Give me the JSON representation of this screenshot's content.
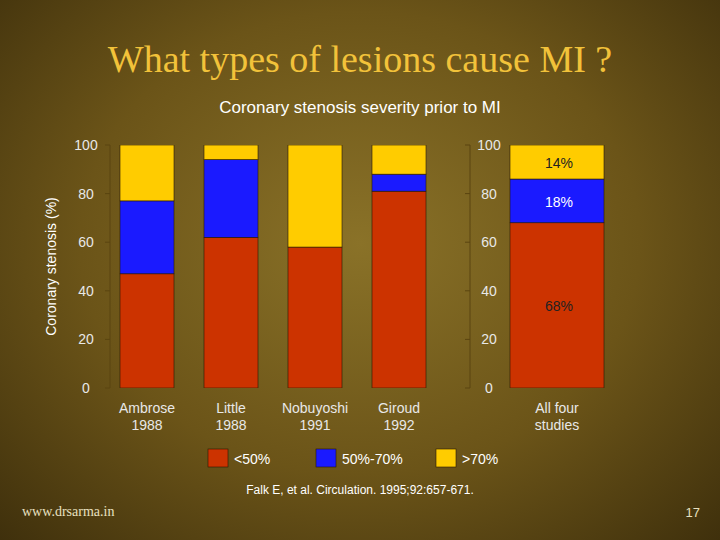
{
  "chart_data": {
    "type": "bar",
    "stacked": true,
    "title": "What types of lesions cause MI ?",
    "subtitle": "Coronary stenosis severity prior to MI",
    "y_label": "Coronary stenosis (%)",
    "categories": [
      "Ambrose 1988",
      "Little 1988",
      "Nobuyoshi 1991",
      "Giroud 1992",
      "All four studies"
    ],
    "series": [
      {
        "name": "<50%",
        "color": "#cc3300",
        "values": [
          47,
          62,
          58,
          81,
          68
        ],
        "value_labels": [
          null,
          null,
          null,
          null,
          "68%"
        ]
      },
      {
        "name": "50%-70%",
        "color": "#1a1aff",
        "values": [
          30,
          32,
          0,
          7,
          18
        ],
        "value_labels": [
          null,
          null,
          null,
          null,
          "18%"
        ]
      },
      {
        "name": ">70%",
        "color": "#ffcc00",
        "values": [
          23,
          6,
          42,
          12,
          14
        ],
        "value_labels": [
          null,
          null,
          null,
          null,
          "14%"
        ]
      }
    ],
    "data_labels": true,
    "legend": "bottom",
    "ylim": [
      0,
      100
    ],
    "yticks": [
      0,
      20,
      40,
      60,
      80,
      100
    ],
    "grid": false,
    "annotations": [
      "Falk E, et al. Circulation. 1995;92:657-671.",
      "www.drsarma.in",
      "17"
    ]
  }
}
